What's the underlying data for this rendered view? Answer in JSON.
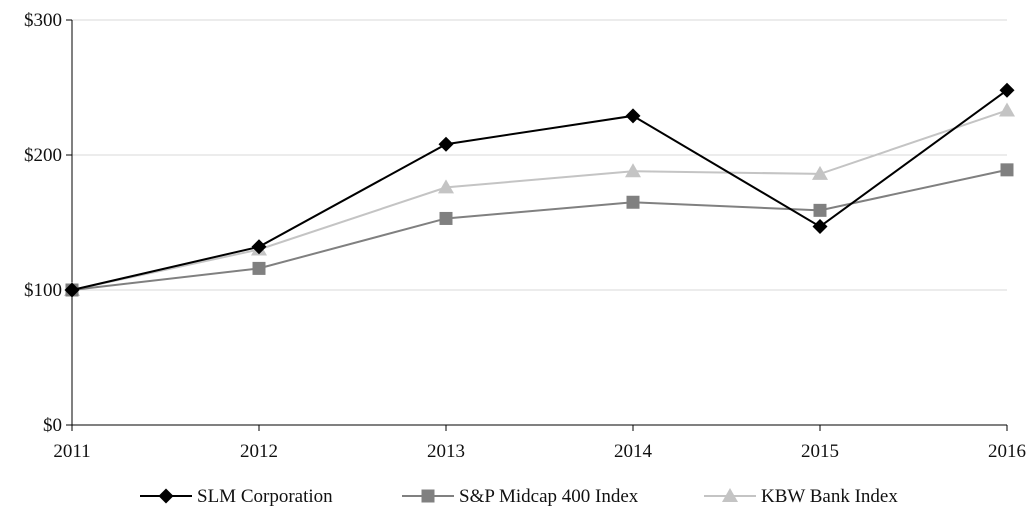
{
  "chart_data": {
    "type": "line",
    "title": "",
    "xlabel": "",
    "ylabel": "",
    "x": [
      "2011",
      "2012",
      "2013",
      "2014",
      "2015",
      "2016"
    ],
    "ylim": [
      0,
      300
    ],
    "yticks": [
      0,
      100,
      200,
      300
    ],
    "ytick_labels": [
      "$0",
      "$100",
      "$200",
      "$300"
    ],
    "grid": true,
    "legend_position": "bottom",
    "series": [
      {
        "name": "SLM Corporation",
        "marker": "diamond-icon",
        "color": "#000000",
        "values": [
          100,
          132,
          208,
          229,
          147,
          248
        ]
      },
      {
        "name": "S&P Midcap 400 Index",
        "marker": "square-icon",
        "color": "#808080",
        "values": [
          100,
          116,
          153,
          165,
          159,
          189
        ]
      },
      {
        "name": "KBW Bank Index",
        "marker": "triangle-icon",
        "color": "#c4c4c4",
        "values": [
          100,
          130,
          176,
          188,
          186,
          233
        ]
      }
    ]
  }
}
